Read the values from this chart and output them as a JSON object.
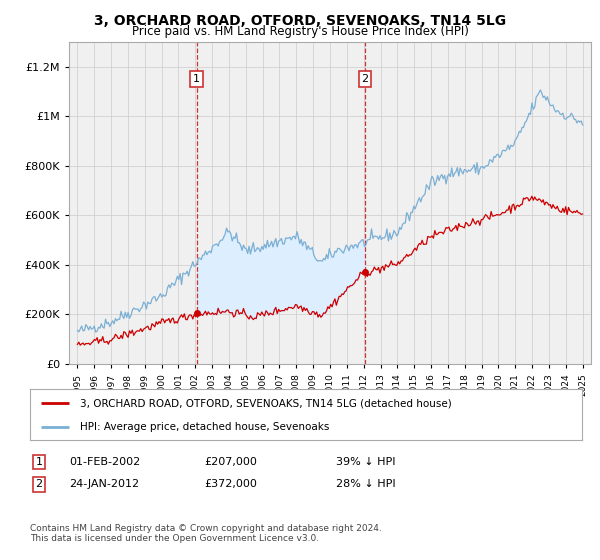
{
  "title": "3, ORCHARD ROAD, OTFORD, SEVENOAKS, TN14 5LG",
  "subtitle": "Price paid vs. HM Land Registry's House Price Index (HPI)",
  "legend_line1": "3, ORCHARD ROAD, OTFORD, SEVENOAKS, TN14 5LG (detached house)",
  "legend_line2": "HPI: Average price, detached house, Sevenoaks",
  "sale1_date": "01-FEB-2002",
  "sale1_price": 207000,
  "sale1_year": 2002.08,
  "sale1_note": "39% ↓ HPI",
  "sale2_date": "24-JAN-2012",
  "sale2_price": 372000,
  "sale2_year": 2012.07,
  "sale2_note": "28% ↓ HPI",
  "footer": "Contains HM Land Registry data © Crown copyright and database right 2024.\nThis data is licensed under the Open Government Licence v3.0.",
  "red_color": "#cc0000",
  "blue_color": "#7bafd4",
  "shade_color": "#ddeeff",
  "marker_box_color": "#cc3333",
  "vline_color": "#cc3333",
  "background_color": "#ffffff",
  "plot_bg_color": "#f0f0f0",
  "ylim": [
    0,
    1300000
  ],
  "xlim": [
    1994.5,
    2025.5
  ]
}
